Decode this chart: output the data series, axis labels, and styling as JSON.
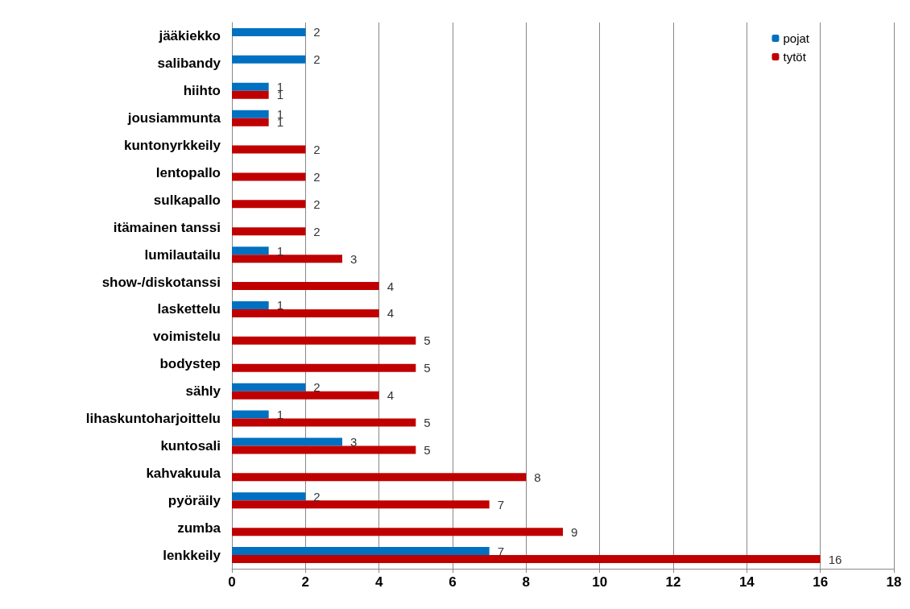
{
  "chart_data": {
    "type": "bar",
    "orientation": "horizontal",
    "categories": [
      "jääkiekko",
      "salibandy",
      "hiihto",
      "jousiammunta",
      "kuntonyrkkeily",
      "lentopallo",
      "sulkapallo",
      "itämainen tanssi",
      "lumilautailu",
      "show-/diskotanssi",
      "laskettelu",
      "voimistelu",
      "bodystep",
      "sähly",
      "lihaskuntoharjoittelu",
      "kuntosali",
      "kahvakuula",
      "pyöräily",
      "zumba",
      "lenkkeily"
    ],
    "series": [
      {
        "name": "pojat",
        "color": "#0070c0",
        "values": [
          2,
          2,
          1,
          1,
          null,
          null,
          null,
          null,
          1,
          null,
          1,
          null,
          null,
          2,
          1,
          3,
          null,
          2,
          null,
          7
        ]
      },
      {
        "name": "tytöt",
        "color": "#c00000",
        "values": [
          null,
          null,
          1,
          1,
          2,
          2,
          2,
          2,
          3,
          4,
          4,
          5,
          5,
          4,
          5,
          5,
          8,
          7,
          9,
          16
        ]
      }
    ],
    "xlim": [
      0,
      18
    ],
    "xticks": [
      0,
      2,
      4,
      6,
      8,
      10,
      12,
      14,
      16,
      18
    ],
    "grid": "x",
    "legend": "top right",
    "data_labels": true
  }
}
